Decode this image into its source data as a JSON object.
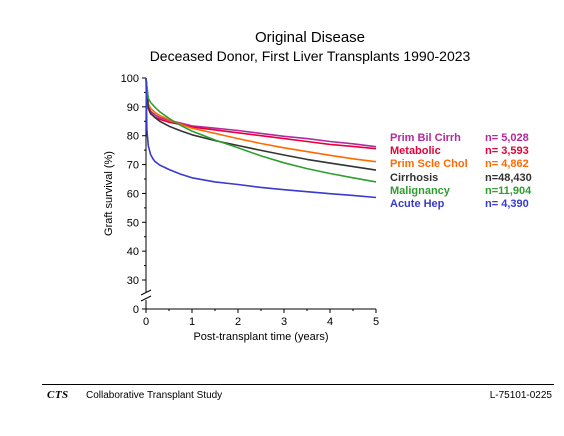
{
  "chart_data": {
    "type": "line",
    "title": "Original Disease",
    "subtitle": "Deceased Donor, First Liver Transplants 1990-2023",
    "xlabel": "Post-transplant time (years)",
    "ylabel": "Graft survival (%)",
    "xlim": [
      0,
      5
    ],
    "ylim": [
      0,
      100
    ],
    "x_ticks": [
      "0",
      "1",
      "2",
      "3",
      "4",
      "5"
    ],
    "y_ticks": [
      "100",
      "90",
      "80",
      "70",
      "60",
      "50",
      "40",
      "30",
      "0"
    ],
    "axis_break": true,
    "legend_position": "right",
    "series": [
      {
        "name": "Prim Bil Cirrh",
        "n": "n=  5,028",
        "color": "#b5289e",
        "x": [
          0,
          0.05,
          0.1,
          0.2,
          0.3,
          0.5,
          0.75,
          1,
          1.5,
          2,
          2.5,
          3,
          3.5,
          4,
          4.5,
          5
        ],
        "y": [
          100,
          90.5,
          88.5,
          87.2,
          86.3,
          85.3,
          84.4,
          83.4,
          82.6,
          81.8,
          80.8,
          79.8,
          79.0,
          78.0,
          77.2,
          76.2
        ]
      },
      {
        "name": "Metabolic",
        "n": "n=  3,593",
        "color": "#e8003a",
        "x": [
          0,
          0.05,
          0.1,
          0.2,
          0.3,
          0.5,
          0.75,
          1,
          1.5,
          2,
          2.5,
          3,
          3.5,
          4,
          4.5,
          5
        ],
        "y": [
          100,
          89.5,
          87.6,
          86.4,
          85.7,
          84.7,
          83.9,
          83.0,
          82.0,
          81.0,
          80.0,
          79.0,
          78.0,
          77.0,
          76.3,
          75.5
        ]
      },
      {
        "name": "Prim Scle Chol",
        "n": "n=  4,862",
        "color": "#ff6a00",
        "x": [
          0,
          0.05,
          0.1,
          0.2,
          0.3,
          0.5,
          0.75,
          1,
          1.5,
          2,
          2.5,
          3,
          3.5,
          4,
          4.5,
          5
        ],
        "y": [
          100,
          91.0,
          89.5,
          88.0,
          87.0,
          85.5,
          84.0,
          82.6,
          80.8,
          79.0,
          77.3,
          75.8,
          74.5,
          73.2,
          72.0,
          71.0
        ]
      },
      {
        "name": "Cirrhosis",
        "n": "n=48,430",
        "color": "#333333",
        "x": [
          0,
          0.05,
          0.1,
          0.2,
          0.3,
          0.5,
          0.75,
          1,
          1.5,
          2,
          2.5,
          3,
          3.5,
          4,
          4.5,
          5
        ],
        "y": [
          100,
          89.5,
          87.8,
          86.2,
          85.0,
          83.3,
          81.7,
          80.3,
          78.3,
          76.6,
          74.9,
          73.3,
          71.8,
          70.5,
          69.3,
          68.1
        ]
      },
      {
        "name": "Malignancy",
        "n": "n=11,904",
        "color": "#2e9e2e",
        "x": [
          0,
          0.05,
          0.1,
          0.2,
          0.3,
          0.5,
          0.75,
          1,
          1.5,
          2,
          2.5,
          3,
          3.5,
          4,
          4.5,
          5
        ],
        "y": [
          100,
          93.0,
          91.5,
          89.8,
          88.3,
          86.0,
          83.6,
          81.6,
          78.5,
          75.8,
          73.0,
          70.6,
          68.6,
          66.9,
          65.4,
          64.0
        ]
      },
      {
        "name": "Acute Hep",
        "n": "n=  4,390",
        "color": "#3a3acc",
        "x": [
          0,
          0.02,
          0.05,
          0.1,
          0.15,
          0.2,
          0.3,
          0.5,
          0.75,
          1,
          1.5,
          2,
          2.5,
          3,
          3.5,
          4,
          4.5,
          5
        ],
        "y": [
          100,
          82.0,
          76.5,
          73.5,
          72.0,
          71.0,
          69.8,
          68.3,
          66.7,
          65.4,
          64.0,
          63.1,
          62.1,
          61.3,
          60.6,
          59.9,
          59.3,
          58.6
        ]
      }
    ]
  },
  "footer": {
    "logo": "CTS",
    "name": "Collaborative Transplant Study",
    "code": "L-75101-0225"
  }
}
